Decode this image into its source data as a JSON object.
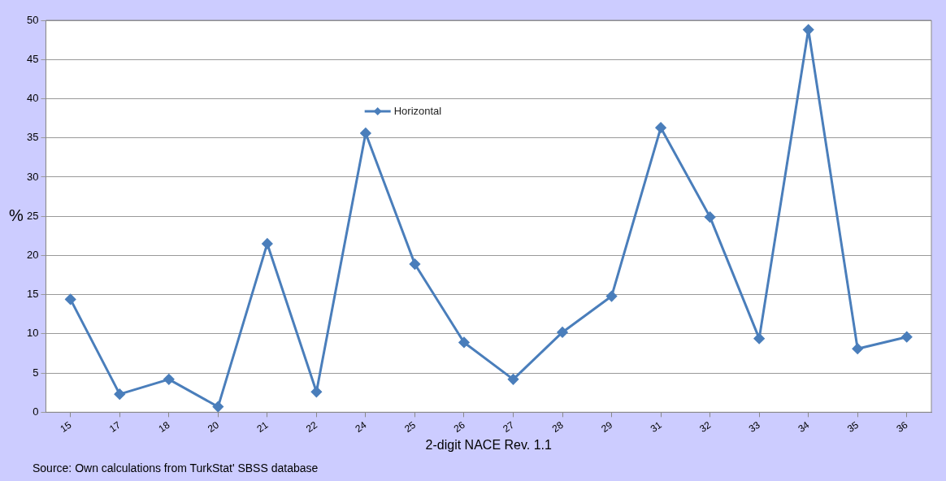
{
  "chart_data": {
    "type": "line",
    "xlabel": "2-digit NACE Rev. 1.1",
    "ylabel": "%",
    "categories": [
      "15",
      "17",
      "18",
      "20",
      "21",
      "22",
      "24",
      "25",
      "26",
      "27",
      "28",
      "29",
      "31",
      "32",
      "33",
      "34",
      "35",
      "36"
    ],
    "series": [
      {
        "name": "Horizontal",
        "color": "#4a7ebb",
        "values": [
          14.4,
          2.3,
          4.2,
          0.7,
          21.5,
          2.6,
          35.6,
          18.9,
          8.9,
          4.2,
          10.2,
          14.8,
          36.3,
          24.9,
          9.4,
          48.8,
          8.1,
          9.6
        ]
      }
    ],
    "ylim": [
      0,
      50
    ],
    "yticks": [
      0,
      5,
      10,
      15,
      20,
      25,
      30,
      35,
      40,
      45,
      50
    ],
    "grid": "y",
    "legend": "top",
    "marker": "diamond",
    "line_style": "solid",
    "annotations": [
      "Source: Own calculations from TurkStat' SBSS database"
    ]
  }
}
